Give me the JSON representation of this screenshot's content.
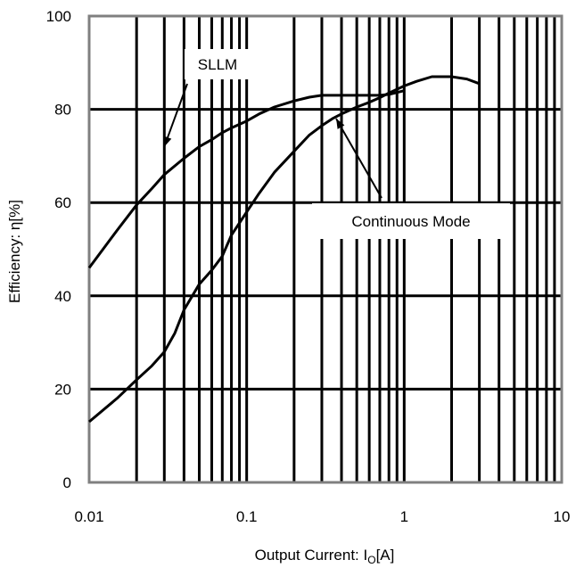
{
  "chart_data": {
    "type": "line",
    "x_scale": "log",
    "xlim": [
      0.01,
      10
    ],
    "ylim": [
      0,
      100
    ],
    "grid": true,
    "xlabel": "Output Current: I",
    "xlabel_sub": "O",
    "xlabel_unit": "[A]",
    "ylabel": "Efficiency: η[%]",
    "x_ticks": [
      {
        "value": 0.01,
        "label": "0.01"
      },
      {
        "value": 0.1,
        "label": "0.1"
      },
      {
        "value": 1,
        "label": "1"
      },
      {
        "value": 10,
        "label": "10"
      }
    ],
    "y_ticks": [
      {
        "value": 0,
        "label": "0"
      },
      {
        "value": 20,
        "label": "20"
      },
      {
        "value": 40,
        "label": "40"
      },
      {
        "value": 60,
        "label": "60"
      },
      {
        "value": 80,
        "label": "80"
      },
      {
        "value": 100,
        "label": "100"
      }
    ],
    "series": [
      {
        "name": "SLLM",
        "x": [
          0.01,
          0.015,
          0.02,
          0.025,
          0.03,
          0.04,
          0.05,
          0.06,
          0.07,
          0.08,
          0.1,
          0.12,
          0.15,
          0.2,
          0.25,
          0.3,
          0.4,
          0.5,
          0.6,
          0.7,
          0.8,
          1.0
        ],
        "y": [
          46,
          54,
          59.5,
          63,
          66,
          69.5,
          72,
          73.5,
          75,
          76,
          77.5,
          79,
          80.5,
          81.8,
          82.6,
          83,
          83,
          83,
          83,
          83,
          83.2,
          84
        ]
      },
      {
        "name": "Continuous Mode",
        "x": [
          0.01,
          0.015,
          0.02,
          0.025,
          0.03,
          0.035,
          0.04,
          0.05,
          0.06,
          0.07,
          0.08,
          0.1,
          0.12,
          0.15,
          0.2,
          0.25,
          0.3,
          0.35,
          0.4,
          0.5,
          0.6,
          0.7,
          0.8,
          1.0,
          1.2,
          1.5,
          2.0,
          2.5,
          3.0
        ],
        "y": [
          13,
          18,
          22,
          25,
          28,
          32,
          37,
          42.5,
          45.5,
          48.5,
          53,
          58,
          62,
          66.5,
          71,
          74.5,
          76.5,
          78,
          79,
          80.5,
          81.5,
          82.5,
          83.5,
          85,
          86,
          87,
          87,
          86.5,
          85.5
        ]
      }
    ],
    "annotations": [
      {
        "text": "SLLM",
        "target_series": "SLLM",
        "arrow_to": [
          0.03,
          72
        ]
      },
      {
        "text": "Continuous Mode",
        "target_series": "Continuous Mode",
        "arrow_to": [
          0.37,
          78
        ]
      }
    ]
  }
}
